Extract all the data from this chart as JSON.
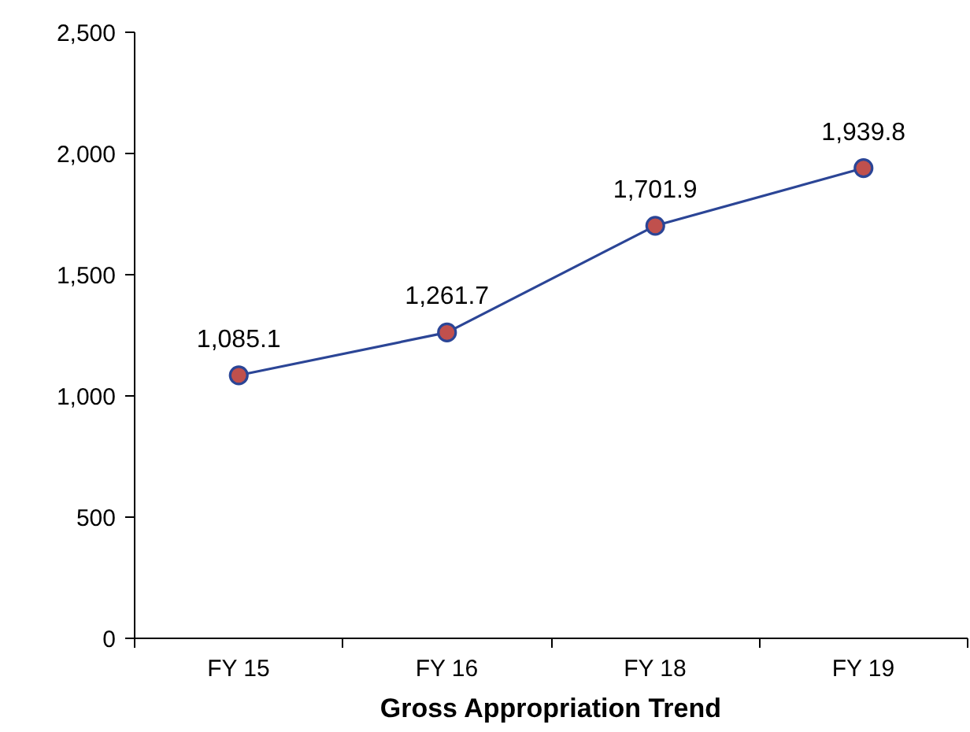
{
  "chart_data": {
    "type": "line",
    "categories": [
      "FY 15",
      "FY 16",
      "FY 18",
      "FY 19"
    ],
    "series": [
      {
        "color": "#2b4596",
        "colors": [
          "#c0504d",
          "#c0504d",
          "#c0504d",
          "#c0504d"
        ],
        "values": [
          1085.1,
          1261.7,
          1701.9,
          1939.8
        ],
        "value_labels": [
          "1,085.1",
          "1,261.7",
          "1,701.9",
          "1,939.8"
        ]
      }
    ],
    "xlabel": "Gross Appropriation Trend",
    "ylim": [
      0,
      2500
    ],
    "yticks": [
      {
        "value": 0,
        "label": "0"
      },
      {
        "value": 500,
        "label": "500"
      },
      {
        "value": 1000,
        "label": "1,000"
      },
      {
        "value": 1500,
        "label": "1,500"
      },
      {
        "value": 2000,
        "label": "2,000"
      },
      {
        "value": 2500,
        "label": "2,500"
      }
    ],
    "marker": "circle",
    "line_style": "solid"
  }
}
